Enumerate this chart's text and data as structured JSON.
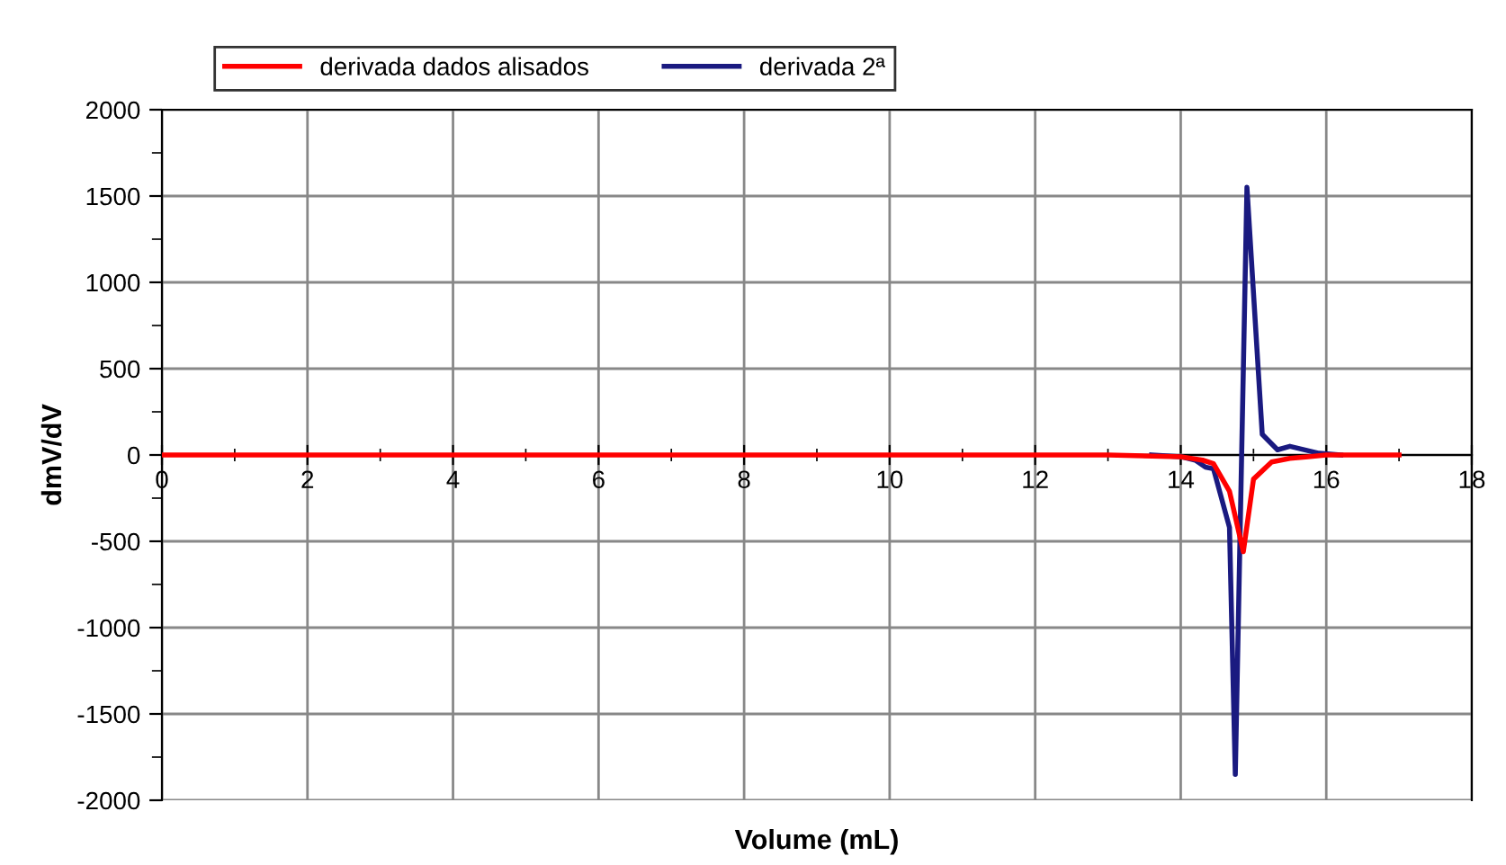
{
  "chart_data": {
    "type": "line",
    "xlabel": "Volume (mL)",
    "ylabel": "dmV/dV",
    "xlim": [
      0,
      18
    ],
    "xticks": [
      0,
      2,
      4,
      6,
      8,
      10,
      12,
      14,
      16,
      18
    ],
    "ylim": [
      -2000,
      2000
    ],
    "yticks": [
      -2000,
      -1500,
      -1000,
      -500,
      0,
      500,
      1000,
      1500,
      2000
    ],
    "grid": true,
    "legend": "top",
    "marker": "none",
    "line_style": "solid",
    "series": [
      {
        "name": "derivada dados alisados",
        "color": "#ff0000",
        "x": [
          0,
          2,
          4,
          6,
          8,
          10,
          12,
          13,
          14,
          14.3,
          14.45,
          14.67,
          14.86,
          15.0,
          15.25,
          15.5,
          15.75,
          16,
          17
        ],
        "values": [
          0,
          0,
          0,
          0,
          0,
          0,
          0,
          0,
          -10,
          -30,
          -50,
          -210,
          -560,
          -140,
          -40,
          -20,
          -10,
          0,
          0
        ]
      },
      {
        "name": "derivada 2ª",
        "color": "#1a1a80",
        "x": [
          13.6,
          14,
          14.2,
          14.34,
          14.45,
          14.67,
          14.75,
          14.91,
          15.12,
          15.33,
          15.5,
          15.9,
          16.2
        ],
        "values": [
          0,
          -10,
          -30,
          -70,
          -80,
          -420,
          -1850,
          1550,
          120,
          30,
          50,
          10,
          0
        ]
      }
    ]
  }
}
